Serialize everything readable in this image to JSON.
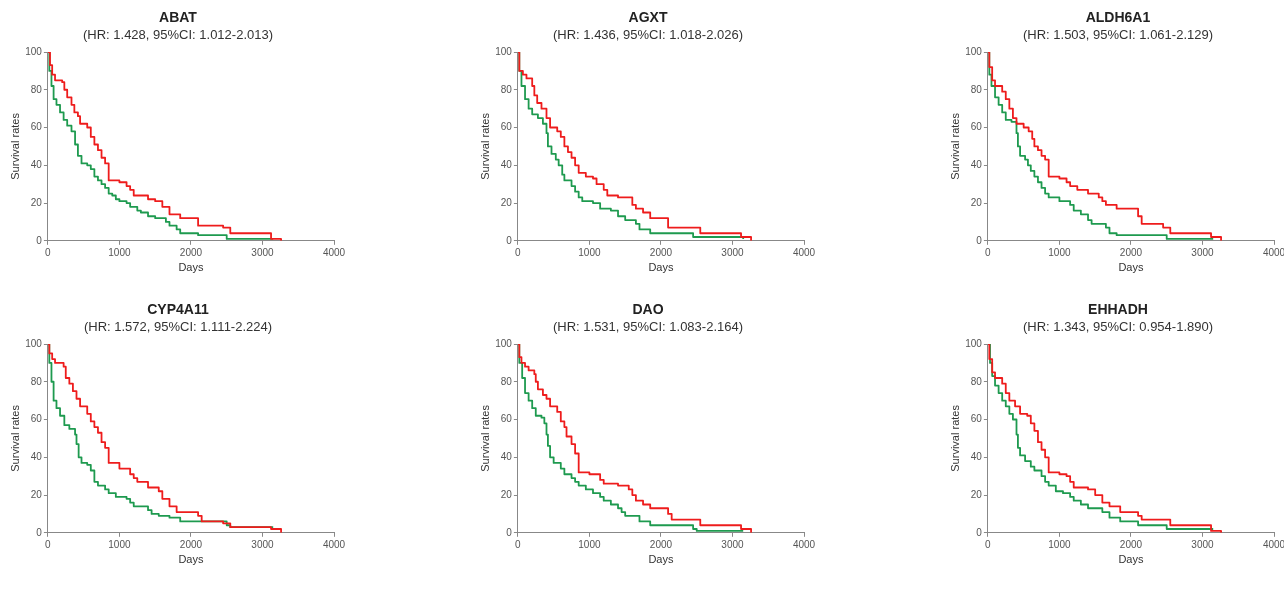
{
  "chart_data": [
    {
      "type": "step",
      "title": "ABAT",
      "subtitle": "(HR: 1.428, 95%CI: 1.012-2.013)",
      "xlabel": "Days",
      "ylabel": "Survival rates",
      "xlim": [
        0,
        4000
      ],
      "xticks": [
        0,
        1000,
        2000,
        3000,
        4000
      ],
      "ylim": [
        0,
        100
      ],
      "yticks": [
        0,
        20,
        40,
        60,
        80,
        100
      ],
      "grid": false,
      "legend": false,
      "series": [
        {
          "color": "#ee1c1c",
          "x": [
            0,
            30,
            60,
            100,
            200,
            230,
            270,
            330,
            370,
            420,
            450,
            550,
            600,
            650,
            700,
            750,
            800,
            850,
            1000,
            1100,
            1150,
            1200,
            1400,
            1500,
            1600,
            1700,
            1850,
            2100,
            2450,
            2550,
            3120,
            3260
          ],
          "values": [
            100,
            93,
            88,
            85,
            84,
            80,
            76,
            72,
            68,
            66,
            62,
            60,
            55,
            51,
            48,
            44,
            41,
            32,
            31,
            29,
            27,
            24,
            22,
            21,
            18,
            14,
            12,
            8,
            7,
            4,
            1,
            0
          ]
        },
        {
          "color": "#1e9a4f",
          "x": [
            0,
            20,
            50,
            80,
            120,
            170,
            220,
            270,
            330,
            380,
            420,
            470,
            550,
            600,
            650,
            700,
            750,
            800,
            850,
            900,
            950,
            1000,
            1100,
            1150,
            1250,
            1300,
            1400,
            1500,
            1650,
            1700,
            1800,
            1850,
            2100,
            2500,
            3150
          ],
          "values": [
            100,
            90,
            82,
            75,
            72,
            68,
            64,
            61,
            58,
            51,
            45,
            41,
            40,
            38,
            34,
            32,
            30,
            28,
            25,
            24,
            22,
            21,
            20,
            18,
            16,
            15,
            13,
            12,
            10,
            8,
            6,
            4,
            3,
            1,
            1
          ]
        }
      ]
    },
    {
      "type": "step",
      "title": "AGXT",
      "subtitle": "(HR: 1.436, 95%CI: 1.018-2.026)",
      "xlabel": "Days",
      "ylabel": "Survival rates",
      "xlim": [
        0,
        4000
      ],
      "xticks": [
        0,
        1000,
        2000,
        3000,
        4000
      ],
      "ylim": [
        0,
        100
      ],
      "yticks": [
        0,
        20,
        40,
        60,
        80,
        100
      ],
      "grid": false,
      "legend": false,
      "series": [
        {
          "color": "#ee1c1c",
          "x": [
            0,
            20,
            70,
            120,
            200,
            230,
            270,
            330,
            400,
            450,
            550,
            600,
            650,
            700,
            750,
            800,
            850,
            950,
            1050,
            1100,
            1200,
            1250,
            1400,
            1600,
            1650,
            1750,
            1850,
            2100,
            2550,
            3120,
            3260
          ],
          "values": [
            100,
            90,
            88,
            86,
            82,
            77,
            73,
            70,
            65,
            60,
            58,
            55,
            50,
            47,
            44,
            40,
            36,
            34,
            33,
            30,
            27,
            24,
            23,
            19,
            17,
            15,
            12,
            7,
            4,
            2,
            0
          ]
        },
        {
          "color": "#1e9a4f",
          "x": [
            0,
            20,
            50,
            100,
            150,
            200,
            280,
            350,
            400,
            420,
            470,
            530,
            570,
            620,
            650,
            750,
            800,
            850,
            900,
            1050,
            1150,
            1300,
            1400,
            1500,
            1650,
            1700,
            1850,
            2450,
            3150
          ],
          "values": [
            100,
            90,
            82,
            75,
            70,
            67,
            65,
            62,
            57,
            50,
            46,
            43,
            40,
            35,
            32,
            29,
            26,
            23,
            21,
            20,
            17,
            16,
            13,
            11,
            9,
            6,
            4,
            2,
            1
          ]
        }
      ]
    },
    {
      "type": "step",
      "title": "ALDH6A1",
      "subtitle": "(HR: 1.503, 95%CI: 1.061-2.129)",
      "xlabel": "Days",
      "ylabel": "Survival rates",
      "xlim": [
        0,
        4000
      ],
      "xticks": [
        0,
        1000,
        2000,
        3000,
        4000
      ],
      "ylim": [
        0,
        100
      ],
      "yticks": [
        0,
        20,
        40,
        60,
        80,
        100
      ],
      "grid": false,
      "legend": false,
      "series": [
        {
          "color": "#ee1c1c",
          "x": [
            0,
            20,
            60,
            100,
            200,
            250,
            300,
            350,
            400,
            500,
            570,
            620,
            650,
            700,
            750,
            800,
            850,
            1000,
            1100,
            1150,
            1250,
            1400,
            1550,
            1600,
            1650,
            1800,
            2100,
            2150,
            2450,
            2550,
            3120,
            3260
          ],
          "values": [
            100,
            92,
            85,
            82,
            79,
            75,
            70,
            65,
            62,
            60,
            58,
            54,
            50,
            48,
            45,
            43,
            34,
            33,
            31,
            29,
            27,
            25,
            23,
            21,
            19,
            17,
            13,
            9,
            7,
            4,
            2,
            0
          ]
        },
        {
          "color": "#1e9a4f",
          "x": [
            0,
            20,
            50,
            100,
            150,
            200,
            250,
            330,
            400,
            420,
            450,
            520,
            560,
            600,
            650,
            700,
            750,
            800,
            850,
            1000,
            1150,
            1200,
            1300,
            1400,
            1450,
            1650,
            1700,
            1800,
            2500,
            3150
          ],
          "values": [
            100,
            88,
            82,
            76,
            72,
            68,
            64,
            63,
            57,
            50,
            45,
            43,
            40,
            37,
            34,
            31,
            28,
            25,
            23,
            21,
            19,
            16,
            14,
            11,
            9,
            7,
            4,
            3,
            1,
            1
          ]
        }
      ]
    },
    {
      "type": "step",
      "title": "CYP4A11",
      "subtitle": "(HR: 1.572, 95%CI: 1.111-2.224)",
      "xlabel": "Days",
      "ylabel": "Survival rates",
      "xlim": [
        0,
        4000
      ],
      "xticks": [
        0,
        1000,
        2000,
        3000,
        4000
      ],
      "ylim": [
        0,
        100
      ],
      "yticks": [
        0,
        20,
        40,
        60,
        80,
        100
      ],
      "grid": false,
      "legend": false,
      "series": [
        {
          "color": "#ee1c1c",
          "x": [
            0,
            20,
            60,
            100,
            220,
            250,
            300,
            350,
            400,
            450,
            550,
            600,
            650,
            700,
            750,
            800,
            850,
            1000,
            1150,
            1200,
            1250,
            1400,
            1550,
            1600,
            1700,
            1800,
            2100,
            2150,
            2450,
            2550,
            3120,
            3260
          ],
          "values": [
            100,
            95,
            92,
            90,
            88,
            82,
            79,
            75,
            71,
            67,
            63,
            59,
            56,
            53,
            48,
            45,
            37,
            34,
            31,
            29,
            27,
            24,
            22,
            18,
            14,
            11,
            9,
            6,
            5,
            3,
            2,
            0
          ]
        },
        {
          "color": "#1e9a4f",
          "x": [
            0,
            20,
            50,
            80,
            120,
            170,
            230,
            300,
            380,
            400,
            430,
            470,
            550,
            600,
            650,
            700,
            800,
            850,
            950,
            1100,
            1150,
            1200,
            1400,
            1450,
            1550,
            1700,
            1850,
            2500,
            2550,
            3150
          ],
          "values": [
            100,
            90,
            80,
            70,
            66,
            62,
            57,
            55,
            52,
            47,
            40,
            37,
            36,
            33,
            27,
            25,
            23,
            21,
            19,
            18,
            16,
            14,
            12,
            10,
            9,
            8,
            6,
            4,
            3,
            3
          ]
        }
      ]
    },
    {
      "type": "step",
      "title": "DAO",
      "subtitle": "(HR: 1.531, 95%CI: 1.083-2.164)",
      "xlabel": "Days",
      "ylabel": "Survival rates",
      "xlim": [
        0,
        4000
      ],
      "xticks": [
        0,
        1000,
        2000,
        3000,
        4000
      ],
      "ylim": [
        0,
        100
      ],
      "yticks": [
        0,
        20,
        40,
        60,
        80,
        100
      ],
      "grid": false,
      "legend": false,
      "series": [
        {
          "color": "#ee1c1c",
          "x": [
            0,
            20,
            50,
            100,
            150,
            230,
            250,
            280,
            350,
            400,
            450,
            550,
            600,
            650,
            680,
            750,
            800,
            850,
            1000,
            1150,
            1200,
            1400,
            1550,
            1600,
            1650,
            1750,
            1850,
            2100,
            2150,
            2550,
            3120,
            3260
          ],
          "values": [
            100,
            93,
            90,
            88,
            86,
            84,
            80,
            76,
            73,
            71,
            67,
            64,
            59,
            56,
            51,
            47,
            42,
            32,
            31,
            28,
            26,
            25,
            23,
            20,
            17,
            15,
            13,
            10,
            7,
            4,
            2,
            0
          ]
        },
        {
          "color": "#1e9a4f",
          "x": [
            0,
            20,
            60,
            100,
            150,
            200,
            250,
            330,
            370,
            400,
            420,
            450,
            500,
            600,
            650,
            750,
            800,
            850,
            950,
            1050,
            1150,
            1200,
            1300,
            1400,
            1450,
            1500,
            1700,
            1850,
            2450,
            2500,
            3150
          ],
          "values": [
            100,
            90,
            82,
            74,
            70,
            66,
            62,
            61,
            58,
            52,
            46,
            40,
            37,
            34,
            31,
            29,
            27,
            25,
            23,
            21,
            19,
            17,
            15,
            13,
            11,
            9,
            6,
            4,
            2,
            1,
            1
          ]
        }
      ]
    },
    {
      "type": "step",
      "title": "EHHADH",
      "subtitle": "(HR: 1.343, 95%CI: 0.954-1.890)",
      "xlabel": "Days",
      "ylabel": "Survival rates",
      "xlim": [
        0,
        4000
      ],
      "xticks": [
        0,
        1000,
        2000,
        3000,
        4000
      ],
      "ylim": [
        0,
        100
      ],
      "yticks": [
        0,
        20,
        40,
        60,
        80,
        100
      ],
      "grid": false,
      "legend": false,
      "series": [
        {
          "color": "#ee1c1c",
          "x": [
            0,
            20,
            60,
            100,
            200,
            250,
            300,
            380,
            450,
            550,
            600,
            650,
            700,
            750,
            800,
            850,
            1000,
            1100,
            1150,
            1200,
            1400,
            1500,
            1600,
            1700,
            1850,
            2100,
            2150,
            2550,
            3120,
            3260
          ],
          "values": [
            100,
            92,
            85,
            82,
            79,
            74,
            70,
            67,
            63,
            62,
            58,
            54,
            48,
            44,
            40,
            32,
            31,
            30,
            27,
            24,
            23,
            20,
            16,
            14,
            11,
            9,
            7,
            4,
            1,
            0
          ]
        },
        {
          "color": "#1e9a4f",
          "x": [
            0,
            30,
            60,
            100,
            150,
            200,
            250,
            300,
            350,
            400,
            420,
            450,
            520,
            600,
            650,
            750,
            800,
            850,
            950,
            1050,
            1150,
            1200,
            1300,
            1400,
            1600,
            1700,
            1850,
            2100,
            2500,
            3150
          ],
          "values": [
            100,
            90,
            83,
            78,
            74,
            70,
            67,
            63,
            60,
            52,
            45,
            41,
            38,
            35,
            33,
            30,
            27,
            25,
            22,
            21,
            19,
            17,
            15,
            13,
            11,
            8,
            6,
            4,
            2,
            2
          ]
        }
      ]
    }
  ]
}
